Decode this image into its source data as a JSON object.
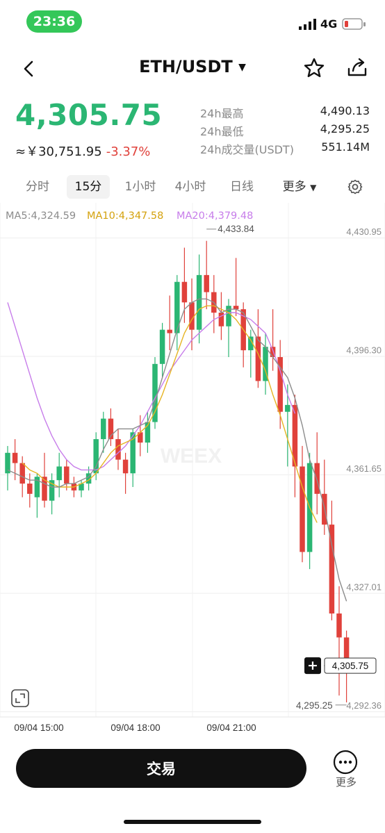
{
  "status": {
    "time": "23:36",
    "network": "4G"
  },
  "header": {
    "pair": "ETH/USDT"
  },
  "price": {
    "last": "4,305.75",
    "fiat": "≈￥30,751.95",
    "change": "-3.37%"
  },
  "stats": [
    {
      "label": "24h最高",
      "value": "4,490.13"
    },
    {
      "label": "24h最低",
      "value": "4,295.25"
    },
    {
      "label": "24h成交量(USDT)",
      "value": "551.14M"
    }
  ],
  "tabs": [
    "分时",
    "15分",
    "1小时",
    "4小时",
    "日线",
    "更多"
  ],
  "active_tab": "15分",
  "ma_legend": {
    "ma5": "MA5:4,324.59",
    "ma10": "MA10:4,347.58",
    "ma20": "MA20:4,379.48"
  },
  "colors": {
    "up": "#2bb673",
    "down": "#e0413b",
    "ma5": "#8c8c8c",
    "ma10": "#e6b422",
    "ma20": "#c77dea"
  },
  "chart_data": {
    "type": "candlestick",
    "watermark": "WEEX",
    "y_ticks": [
      "4,430.95",
      "4,396.30",
      "4,361.65",
      "4,327.01",
      "4,292.36"
    ],
    "x_ticks": [
      "09/04 15:00",
      "09/04 18:00",
      "09/04 21:00"
    ],
    "ylim": [
      4292.36,
      4430.95
    ],
    "high_label": "4,433.84",
    "low_label": "4,295.25",
    "last_price_label": "4,305.75",
    "candles": [
      [
        4362,
        4370,
        4357,
        4368
      ],
      [
        4368,
        4372,
        4360,
        4365
      ],
      [
        4365,
        4367,
        4355,
        4359
      ],
      [
        4359,
        4362,
        4352,
        4356
      ],
      [
        4355,
        4362,
        4349,
        4361
      ],
      [
        4361,
        4368,
        4352,
        4354
      ],
      [
        4354,
        4362,
        4350,
        4360
      ],
      [
        4360,
        4368,
        4355,
        4364
      ],
      [
        4364,
        4366,
        4357,
        4359
      ],
      [
        4359,
        4361,
        4355,
        4357
      ],
      [
        4357,
        4360,
        4355,
        4359
      ],
      [
        4359,
        4364,
        4357,
        4362
      ],
      [
        4362,
        4374,
        4360,
        4372
      ],
      [
        4372,
        4380,
        4368,
        4378
      ],
      [
        4378,
        4381,
        4370,
        4372
      ],
      [
        4372,
        4375,
        4363,
        4366
      ],
      [
        4366,
        4368,
        4356,
        4362
      ],
      [
        4362,
        4375,
        4358,
        4374
      ],
      [
        4374,
        4379,
        4367,
        4371
      ],
      [
        4371,
        4380,
        4368,
        4377
      ],
      [
        4377,
        4396,
        4375,
        4394
      ],
      [
        4394,
        4406,
        4390,
        4404
      ],
      [
        4404,
        4414,
        4398,
        4403
      ],
      [
        4403,
        4420,
        4398,
        4418
      ],
      [
        4418,
        4428,
        4406,
        4412
      ],
      [
        4412,
        4419,
        4398,
        4404
      ],
      [
        4404,
        4426,
        4400,
        4420
      ],
      [
        4420,
        4430,
        4410,
        4415
      ],
      [
        4415,
        4420,
        4403,
        4409
      ],
      [
        4409,
        4415,
        4401,
        4405
      ],
      [
        4405,
        4413,
        4396,
        4411
      ],
      [
        4411,
        4425,
        4408,
        4410
      ],
      [
        4410,
        4412,
        4393,
        4398
      ],
      [
        4398,
        4404,
        4390,
        4402
      ],
      [
        4402,
        4410,
        4387,
        4389
      ],
      [
        4389,
        4403,
        4385,
        4399
      ],
      [
        4399,
        4410,
        4392,
        4396
      ],
      [
        4396,
        4401,
        4375,
        4380
      ],
      [
        4380,
        4388,
        4364,
        4382
      ],
      [
        4382,
        4385,
        4355,
        4364
      ],
      [
        4364,
        4370,
        4336,
        4339
      ],
      [
        4339,
        4368,
        4334,
        4365
      ],
      [
        4365,
        4374,
        4350,
        4356
      ],
      [
        4356,
        4366,
        4344,
        4347
      ],
      [
        4347,
        4354,
        4319,
        4321
      ],
      [
        4321,
        4329,
        4297,
        4314
      ],
      [
        4314,
        4316,
        4295,
        4305.75
      ]
    ],
    "ma5": [
      4363,
      4362,
      4361,
      4360,
      4360,
      4359,
      4358,
      4358,
      4359,
      4359,
      4360,
      4361,
      4364,
      4369,
      4373,
      4375,
      4375,
      4375,
      4376,
      4377,
      4383,
      4390,
      4397,
      4404,
      4410,
      4412,
      4413,
      4413,
      4412,
      4409,
      4410,
      4410,
      4409,
      4405,
      4401,
      4399,
      4396,
      4393,
      4390,
      4384,
      4376,
      4366,
      4360,
      4352,
      4341,
      4331,
      4324.59
    ],
    "ma10": [
      null,
      null,
      4365,
      4363,
      4362,
      4360,
      4359,
      4358,
      4358,
      4358,
      4359,
      4360,
      4362,
      4365,
      4368,
      4370,
      4371,
      4372,
      4374,
      4376,
      4380,
      4385,
      4391,
      4397,
      4403,
      4407,
      4410,
      4411,
      4411,
      4410,
      4409,
      4407,
      4404,
      4401,
      4397,
      4392,
      4385,
      4379,
      4372,
      4365,
      4358,
      4352,
      4347.58,
      null,
      null,
      null,
      null
    ],
    "ma20": [
      4412,
      4405,
      4398,
      4391,
      4384,
      4378,
      4373,
      4369,
      4366,
      4364,
      4363,
      4363,
      4363,
      4364,
      4366,
      4368,
      4370,
      4373,
      4376,
      4380,
      4384,
      4388,
      4392,
      4395,
      4398,
      4401,
      4403,
      4405,
      4407,
      4408,
      4409,
      4409,
      4408,
      4407,
      4405,
      4403,
      4398,
      4392,
      4385,
      4379.48,
      null,
      null,
      null,
      null,
      null,
      null,
      null
    ]
  },
  "bottom": {
    "trade": "交易",
    "more": "更多"
  }
}
